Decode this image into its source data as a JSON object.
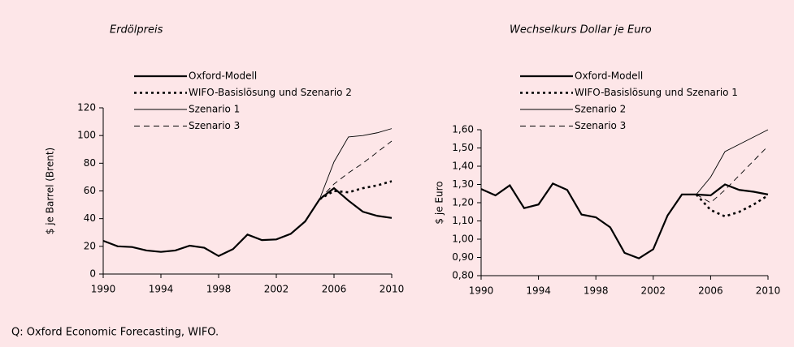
{
  "chart_data": [
    {
      "type": "line",
      "title": "Erdölpreis",
      "ylabel": "$ je Barrel (Brent)",
      "x": [
        1990,
        1991,
        1992,
        1993,
        1994,
        1995,
        1996,
        1997,
        1998,
        1999,
        2000,
        2001,
        2002,
        2003,
        2004,
        2005,
        2006,
        2007,
        2008,
        2009,
        2010
      ],
      "xlim": [
        1990,
        2010
      ],
      "xticks": [
        1990,
        1994,
        1998,
        2002,
        2006,
        2010
      ],
      "ylim": [
        0,
        120
      ],
      "yticks": [
        0,
        20,
        40,
        60,
        80,
        100,
        120
      ],
      "series": [
        {
          "name": "Oxford-Modell",
          "color": "#000000",
          "style": "thick",
          "values": [
            24,
            20,
            19.5,
            17,
            16,
            17,
            20.5,
            19,
            13,
            18,
            28.5,
            24.5,
            25,
            29,
            38,
            54,
            62,
            53,
            45,
            42,
            40.5
          ]
        },
        {
          "name": "WIFO-Basislösung und Szenario 2",
          "color": "#000000",
          "style": "dotted",
          "values": [
            null,
            null,
            null,
            null,
            null,
            null,
            null,
            null,
            null,
            null,
            null,
            null,
            null,
            null,
            null,
            54,
            60,
            59,
            62,
            64,
            67
          ]
        },
        {
          "name": "Szenario 1",
          "color": "#000000",
          "style": "thin",
          "values": [
            null,
            null,
            null,
            null,
            null,
            null,
            null,
            null,
            null,
            null,
            null,
            null,
            null,
            null,
            null,
            54,
            81,
            99,
            100,
            102,
            105
          ]
        },
        {
          "name": "Szenario 3",
          "color": "#000000",
          "style": "dashed",
          "values": [
            null,
            null,
            null,
            null,
            null,
            null,
            null,
            null,
            null,
            null,
            null,
            null,
            null,
            null,
            null,
            54,
            65,
            73,
            80,
            88,
            96
          ]
        }
      ]
    },
    {
      "type": "line",
      "title": "Wechselkurs Dollar je Euro",
      "ylabel": "$ je Euro",
      "x": [
        1990,
        1991,
        1992,
        1993,
        1994,
        1995,
        1996,
        1997,
        1998,
        1999,
        2000,
        2001,
        2002,
        2003,
        2004,
        2005,
        2006,
        2007,
        2008,
        2009,
        2010
      ],
      "xlim": [
        1990,
        2010
      ],
      "xticks": [
        1990,
        1994,
        1998,
        2002,
        2006,
        2010
      ],
      "ylim": [
        0.8,
        1.6
      ],
      "yticks": [
        {
          "value": 0.8,
          "label": "0,80"
        },
        {
          "value": 0.9,
          "label": "0,90"
        },
        {
          "value": 1.0,
          "label": "1,00"
        },
        {
          "value": 1.1,
          "label": "1,10"
        },
        {
          "value": 1.2,
          "label": "1,20"
        },
        {
          "value": 1.3,
          "label": "1,30"
        },
        {
          "value": 1.4,
          "label": "1,40"
        },
        {
          "value": 1.5,
          "label": "1,50"
        },
        {
          "value": 1.6,
          "label": "1,60"
        }
      ],
      "series": [
        {
          "name": "Oxford-Modell",
          "color": "#000000",
          "style": "thick",
          "values": [
            1.275,
            1.24,
            1.295,
            1.17,
            1.19,
            1.305,
            1.27,
            1.135,
            1.12,
            1.065,
            0.925,
            0.895,
            0.945,
            1.13,
            1.245,
            1.245,
            1.24,
            1.3,
            1.27,
            1.26,
            1.245
          ]
        },
        {
          "name": "WIFO-Basislösung und Szenario 1",
          "color": "#000000",
          "style": "dotted",
          "values": [
            null,
            null,
            null,
            null,
            null,
            null,
            null,
            null,
            null,
            null,
            null,
            null,
            null,
            null,
            null,
            1.245,
            1.16,
            1.125,
            1.15,
            1.19,
            1.24
          ]
        },
        {
          "name": "Szenario 2",
          "color": "#000000",
          "style": "thin",
          "values": [
            null,
            null,
            null,
            null,
            null,
            null,
            null,
            null,
            null,
            null,
            null,
            null,
            null,
            null,
            null,
            1.245,
            1.34,
            1.48,
            1.52,
            1.56,
            1.6
          ]
        },
        {
          "name": "Szenario 3",
          "color": "#000000",
          "style": "dashed",
          "values": [
            null,
            null,
            null,
            null,
            null,
            null,
            null,
            null,
            null,
            null,
            null,
            null,
            null,
            null,
            null,
            1.245,
            1.2,
            1.27,
            1.35,
            1.43,
            1.51
          ]
        }
      ]
    }
  ],
  "source": "Q: Oxford Economic Forecasting, WIFO."
}
